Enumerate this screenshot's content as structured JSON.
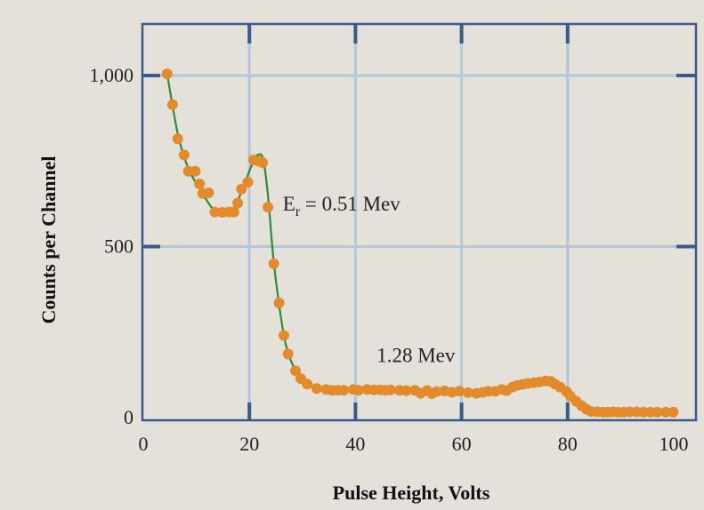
{
  "chart_data": {
    "type": "scatter",
    "title": "",
    "xlabel": "Pulse Height, Volts",
    "ylabel": "Counts per Channel",
    "xlim": [
      0,
      100
    ],
    "ylim": [
      0,
      1000
    ],
    "x_ticks": [
      0,
      20,
      40,
      60,
      80,
      100
    ],
    "x_tick_labels": [
      "0",
      "20",
      "40",
      "60",
      "80",
      "100"
    ],
    "y_ticks": [
      0,
      500,
      1000
    ],
    "y_tick_labels": [
      "0",
      "500",
      "1,000"
    ],
    "grid": true,
    "colors": {
      "points": "#e38b2a",
      "curve": "#2e8b3a",
      "grid": "#b5c7d6",
      "frame": "#3a5a8c",
      "background": "#e4e0da"
    },
    "series": [
      {
        "marker": "circle",
        "points": [
          [
            4.5,
            1005
          ],
          [
            5.5,
            915
          ],
          [
            6.5,
            815
          ],
          [
            7.7,
            768
          ],
          [
            8.5,
            720
          ],
          [
            9.8,
            720
          ],
          [
            10.6,
            683
          ],
          [
            11.2,
            655
          ],
          [
            12.3,
            657
          ],
          [
            13.5,
            601
          ],
          [
            14.9,
            600
          ],
          [
            16.2,
            601
          ],
          [
            17.1,
            601
          ],
          [
            17.8,
            627
          ],
          [
            18.5,
            668
          ],
          [
            19.7,
            688
          ],
          [
            20.8,
            753
          ],
          [
            21.7,
            750
          ],
          [
            22.5,
            745
          ],
          [
            23.5,
            615
          ],
          [
            24.6,
            450
          ],
          [
            25.6,
            335
          ],
          [
            26.5,
            240
          ],
          [
            27.3,
            186
          ],
          [
            28.7,
            137
          ],
          [
            29.7,
            114
          ],
          [
            30.9,
            98
          ],
          [
            32.7,
            85
          ],
          [
            34.5,
            82
          ],
          [
            35.6,
            80
          ],
          [
            36.7,
            80
          ],
          [
            37.8,
            80
          ],
          [
            39.6,
            82
          ],
          [
            40.6,
            80
          ],
          [
            42.2,
            82
          ],
          [
            43.5,
            81
          ],
          [
            44.6,
            81
          ],
          [
            45.6,
            80
          ],
          [
            46.6,
            81
          ],
          [
            48.3,
            80
          ],
          [
            49.6,
            79
          ],
          [
            51.2,
            80
          ],
          [
            52.3,
            71
          ],
          [
            53.5,
            79
          ],
          [
            54.4,
            70
          ],
          [
            55.3,
            76
          ],
          [
            56.8,
            78
          ],
          [
            58.2,
            74
          ],
          [
            59.6,
            77
          ],
          [
            61.2,
            73
          ],
          [
            62.8,
            71
          ],
          [
            64.0,
            74
          ],
          [
            65.0,
            77
          ],
          [
            66.3,
            77
          ],
          [
            67.6,
            82
          ],
          [
            68.5,
            79
          ],
          [
            69.6,
            89
          ],
          [
            70.5,
            94
          ],
          [
            71.5,
            97
          ],
          [
            72.5,
            100
          ],
          [
            73.6,
            102
          ],
          [
            74.7,
            104
          ],
          [
            75.8,
            107
          ],
          [
            76.8,
            106
          ],
          [
            77.6,
            98
          ],
          [
            78.6,
            89
          ],
          [
            79.8,
            76
          ],
          [
            80.5,
            63
          ],
          [
            81.6,
            48
          ],
          [
            82.6,
            35
          ],
          [
            83.5,
            25
          ],
          [
            84.4,
            18
          ],
          [
            85.6,
            17
          ],
          [
            86.7,
            16
          ],
          [
            87.6,
            16
          ],
          [
            88.6,
            17
          ],
          [
            89.5,
            16
          ],
          [
            90.6,
            16
          ],
          [
            91.7,
            17
          ],
          [
            93.0,
            17
          ],
          [
            94.3,
            16
          ],
          [
            95.6,
            16
          ],
          [
            96.9,
            16
          ],
          [
            98.5,
            16
          ],
          [
            99.9,
            16
          ]
        ]
      },
      {
        "style": "smooth-line",
        "points": [
          [
            4.5,
            1005
          ],
          [
            6.5,
            830
          ],
          [
            8.5,
            728
          ],
          [
            11,
            660
          ],
          [
            13.5,
            605
          ],
          [
            16.5,
            598
          ],
          [
            18.5,
            660
          ],
          [
            20.5,
            740
          ],
          [
            21.6,
            768
          ],
          [
            22.6,
            755
          ],
          [
            23.5,
            650
          ],
          [
            24.5,
            470
          ],
          [
            25.6,
            330
          ],
          [
            26.7,
            225
          ],
          [
            28,
            160
          ],
          [
            29.5,
            120
          ],
          [
            31,
            98
          ],
          [
            33,
            85
          ],
          [
            36,
            80
          ],
          [
            42,
            80
          ],
          [
            50,
            79
          ],
          [
            58,
            76
          ],
          [
            64,
            75
          ],
          [
            68,
            80
          ],
          [
            72,
            96
          ],
          [
            76.5,
            107
          ],
          [
            79,
            88
          ],
          [
            81.5,
            50
          ],
          [
            84,
            22
          ],
          [
            86,
            17
          ],
          [
            92,
            16
          ],
          [
            100,
            16
          ]
        ]
      }
    ],
    "annotations": [
      {
        "main": "E",
        "sub": "r",
        "rest": " = 0.51 Mev",
        "x": 26.3,
        "y": 605
      },
      {
        "text": "1.28 Mev",
        "x": 44,
        "y": 162
      }
    ]
  }
}
